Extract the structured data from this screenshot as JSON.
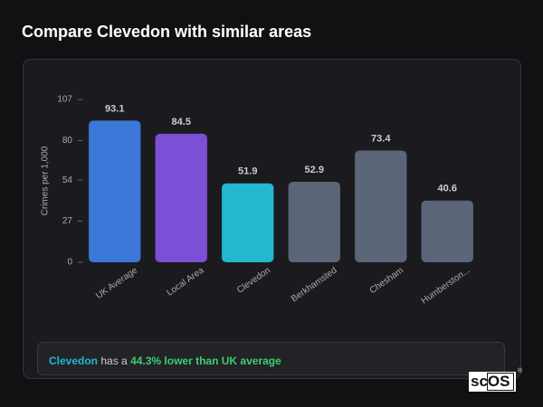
{
  "chart_data": {
    "type": "bar",
    "title": "Compare Clevedon with similar areas",
    "y_label": "Crimes per 1,000",
    "categories": [
      "UK Average",
      "Local Area",
      "Clevedon",
      "Berkhamsted",
      "Chesham",
      "Humberston..."
    ],
    "values": [
      93.1,
      84.5,
      51.9,
      52.9,
      73.4,
      40.6
    ],
    "colors": [
      "#3b78d8",
      "#7b4fd6",
      "#22b8cf",
      "#5a6577",
      "#5a6577",
      "#5a6577"
    ],
    "ylim": [
      0,
      107
    ],
    "yticks": [
      0,
      27,
      54,
      80,
      107
    ],
    "grid": false
  },
  "summary": {
    "area": "Clevedon",
    "text": "has a",
    "comparison": "44.3% lower than UK average"
  },
  "logo": {
    "name": "sc",
    "boxed": "OS",
    "mark": "®"
  }
}
